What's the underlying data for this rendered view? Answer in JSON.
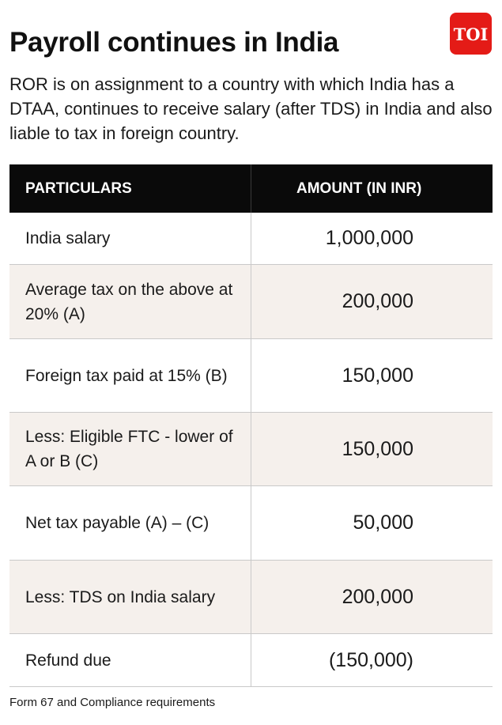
{
  "header": {
    "title": "Payroll continues in India",
    "logo_text": "TOI"
  },
  "intro": "ROR is on assignment to a country with which India has a DTAA, continues to receive salary (after TDS) in India and also liable to tax in foreign country.",
  "table": {
    "columns": [
      "PARTICULARS",
      "AMOUNT (IN INR)"
    ],
    "rows": [
      {
        "particular": "India salary",
        "amount": "1,000,000"
      },
      {
        "particular": "Average tax on the above at 20% (A)",
        "amount": "200,000"
      },
      {
        "particular": "Foreign tax paid at 15% (B)",
        "amount": "150,000"
      },
      {
        "particular": "Less: Eligible FTC - lower of A or B (C)",
        "amount": "150,000"
      },
      {
        "particular": "Net tax payable (A) – (C)",
        "amount": "50,000"
      },
      {
        "particular": "Less: TDS on India salary",
        "amount": "200,000"
      },
      {
        "particular": "Refund due",
        "amount": "(150,000)"
      }
    ]
  },
  "footer": "Form 67 and Compliance requirements",
  "colors": {
    "logo_red": "#e41b17",
    "header_black": "#0a0a0a",
    "alt_row_bg": "#f5f0ec"
  }
}
